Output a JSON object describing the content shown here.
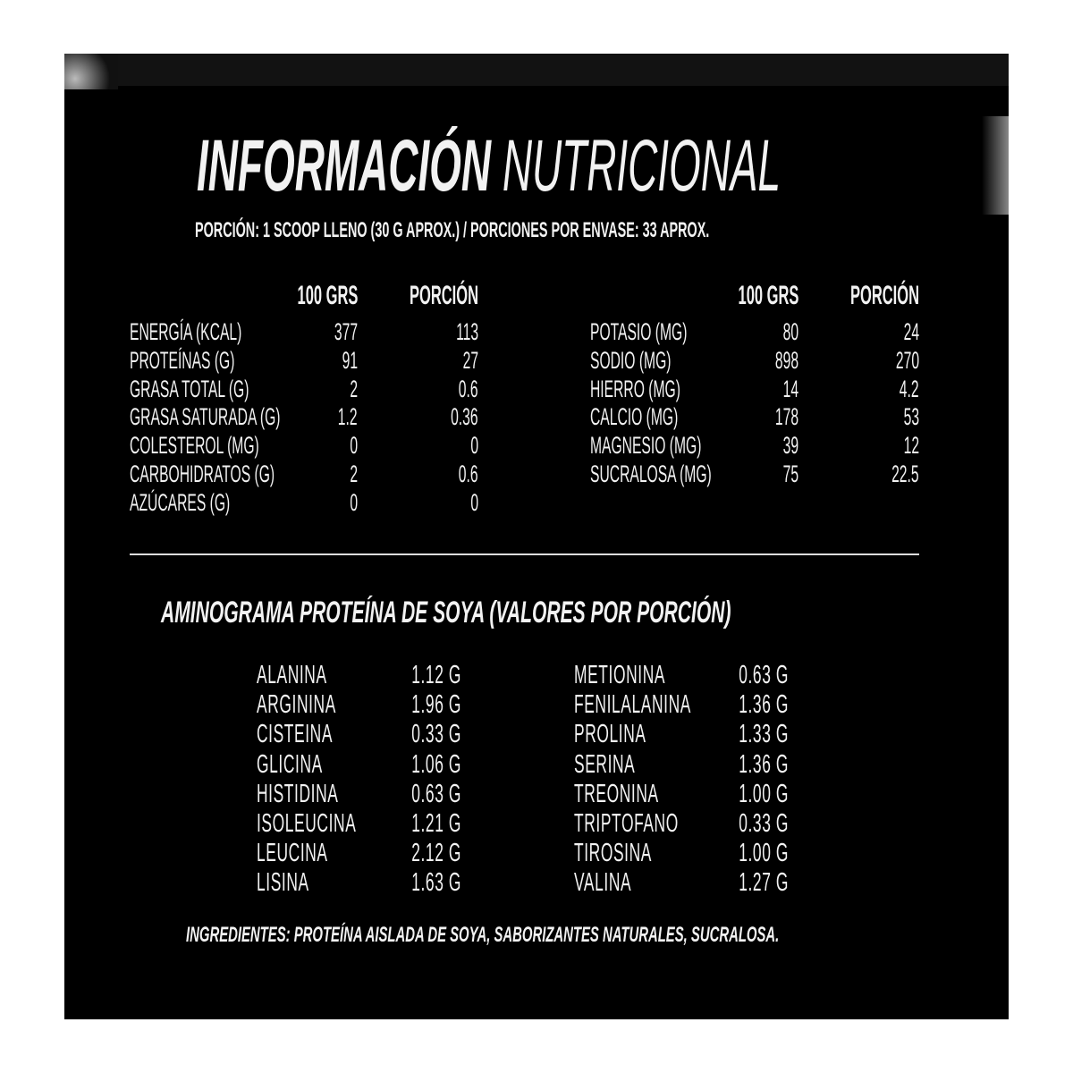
{
  "title": {
    "bold": "INFORMACIÓN",
    "light": "NUTRICIONAL"
  },
  "serving": "PORCIÓN: 1 SCOOP LLENO (30 G APROX.)  / PORCIONES POR ENVASE: 33 APROX.",
  "columns": {
    "per100": "100 GRS",
    "portion": "PORCIÓN"
  },
  "nutrients_left": [
    {
      "name": "ENERGÍA (KCAL)",
      "per100": "377",
      "portion": "113"
    },
    {
      "name": "PROTEÍNAS (G)",
      "per100": "91",
      "portion": "27"
    },
    {
      "name": "GRASA TOTAL (G)",
      "per100": "2",
      "portion": "0.6"
    },
    {
      "name": "GRASA SATURADA (G)",
      "per100": "1.2",
      "portion": "0.36"
    },
    {
      "name": "COLESTEROL (MG)",
      "per100": "0",
      "portion": "0"
    },
    {
      "name": "CARBOHIDRATOS (G)",
      "per100": "2",
      "portion": "0.6"
    },
    {
      "name": "AZÚCARES (G)",
      "per100": "0",
      "portion": "0"
    }
  ],
  "nutrients_right": [
    {
      "name": "POTASIO (MG)",
      "per100": "80",
      "portion": "24"
    },
    {
      "name": "SODIO (MG)",
      "per100": "898",
      "portion": "270"
    },
    {
      "name": "HIERRO (MG)",
      "per100": "14",
      "portion": "4.2"
    },
    {
      "name": "CALCIO (MG)",
      "per100": "178",
      "portion": "53"
    },
    {
      "name": "MAGNESIO (MG)",
      "per100": "39",
      "portion": "12"
    },
    {
      "name": "SUCRALOSA (MG)",
      "per100": "75",
      "portion": "22.5"
    }
  ],
  "aminogram_title": "AMINOGRAMA PROTEÍNA DE SOYA (VALORES POR PORCIÓN)",
  "amino_left": [
    {
      "name": "ALANINA",
      "value": "1.12 G"
    },
    {
      "name": "ARGININA",
      "value": "1.96 G"
    },
    {
      "name": "CISTEINA",
      "value": "0.33 G"
    },
    {
      "name": "GLICINA",
      "value": "1.06 G"
    },
    {
      "name": "HISTIDINA",
      "value": "0.63 G"
    },
    {
      "name": "ISOLEUCINA",
      "value": "1.21 G"
    },
    {
      "name": "LEUCINA",
      "value": "2.12 G"
    },
    {
      "name": "LISINA",
      "value": "1.63 G"
    }
  ],
  "amino_right": [
    {
      "name": "METIONINA",
      "value": "0.63 G"
    },
    {
      "name": "FENILALANINA",
      "value": "1.36 G"
    },
    {
      "name": "PROLINA",
      "value": "1.33 G"
    },
    {
      "name": "SERINA",
      "value": "1.36 G"
    },
    {
      "name": "TREONINA",
      "value": "1.00 G"
    },
    {
      "name": "TRIPTOFANO",
      "value": "0.33 G"
    },
    {
      "name": "TIROSINA",
      "value": "1.00 G"
    },
    {
      "name": "VALINA",
      "value": "1.27 G"
    }
  ],
  "ingredients": "INGREDIENTES: PROTEÍNA AISLADA DE SOYA, SABORIZANTES NATURALES, SUCRALOSA.",
  "colors": {
    "background": "#000000",
    "text": "#f2f2f2",
    "page": "#ffffff"
  }
}
